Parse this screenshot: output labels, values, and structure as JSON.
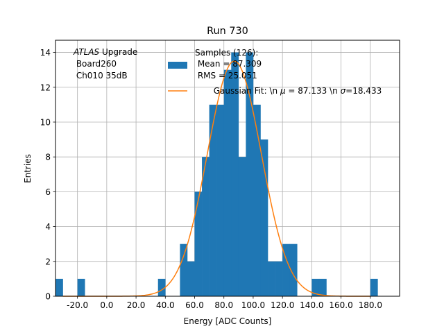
{
  "chart_data": {
    "type": "bar",
    "title": "Run 730",
    "xlabel": "Energy [ADC Counts]",
    "ylabel": "Entries",
    "xlim": [
      -35,
      200
    ],
    "ylim": [
      0,
      14.7
    ],
    "grid": true,
    "x_ticks": [
      -20,
      0,
      20,
      40,
      60,
      80,
      100,
      120,
      140,
      160,
      180
    ],
    "x_tick_labels": [
      "-20.0",
      "0.0",
      "20.0",
      "40.0",
      "60.0",
      "80.0",
      "100.0",
      "120.0",
      "140.0",
      "160.0",
      "180.0"
    ],
    "y_ticks": [
      0,
      2,
      4,
      6,
      8,
      10,
      12,
      14
    ],
    "y_tick_labels": [
      "0",
      "2",
      "4",
      "6",
      "8",
      "10",
      "12",
      "14"
    ],
    "annotation": {
      "italic": "ATLAS",
      "rest": " Upgrade",
      "line2": " Board260",
      "line3": " Ch010 35dB"
    },
    "series": [
      {
        "name": "Samples (126):\n Mean = 87.309\n RMS = 25.051",
        "kind": "histogram",
        "color": "#1f77b4",
        "bins": [
          {
            "x0": -35,
            "x1": -30,
            "count": 1
          },
          {
            "x0": -20,
            "x1": -15,
            "count": 1
          },
          {
            "x0": 35,
            "x1": 40,
            "count": 1
          },
          {
            "x0": 50,
            "x1": 55,
            "count": 3
          },
          {
            "x0": 55,
            "x1": 60,
            "count": 2
          },
          {
            "x0": 60,
            "x1": 65,
            "count": 6
          },
          {
            "x0": 65,
            "x1": 70,
            "count": 8
          },
          {
            "x0": 70,
            "x1": 75,
            "count": 11
          },
          {
            "x0": 75,
            "x1": 80,
            "count": 11
          },
          {
            "x0": 80,
            "x1": 85,
            "count": 13
          },
          {
            "x0": 85,
            "x1": 90,
            "count": 14
          },
          {
            "x0": 90,
            "x1": 95,
            "count": 8
          },
          {
            "x0": 95,
            "x1": 100,
            "count": 14
          },
          {
            "x0": 100,
            "x1": 105,
            "count": 11
          },
          {
            "x0": 105,
            "x1": 110,
            "count": 9
          },
          {
            "x0": 110,
            "x1": 115,
            "count": 2
          },
          {
            "x0": 115,
            "x1": 120,
            "count": 2
          },
          {
            "x0": 120,
            "x1": 125,
            "count": 3
          },
          {
            "x0": 125,
            "x1": 130,
            "count": 3
          },
          {
            "x0": 140,
            "x1": 145,
            "count": 1
          },
          {
            "x0": 145,
            "x1": 150,
            "count": 1
          },
          {
            "x0": 180,
            "x1": 185,
            "count": 1
          }
        ]
      },
      {
        "name": "Gaussian Fit: \\n μ = 87.133 \\n σ=18.433",
        "kind": "line",
        "color": "#ff7f0e",
        "mu": 87.133,
        "sigma": 18.433,
        "amplitude": 13.5,
        "x_range": [
          -30,
          180
        ]
      }
    ],
    "legend": {
      "placement": "top-center",
      "hist_label_lines": [
        "Samples (126):",
        " Mean = 87.309",
        " RMS = 25.051"
      ],
      "fit_label_prefix": "Gaussian Fit: \\n ",
      "fit_mu_symbol": "μ",
      "fit_mu_text": " = 87.133 \\n ",
      "fit_sigma_symbol": "σ",
      "fit_sigma_text": "=18.433"
    }
  }
}
